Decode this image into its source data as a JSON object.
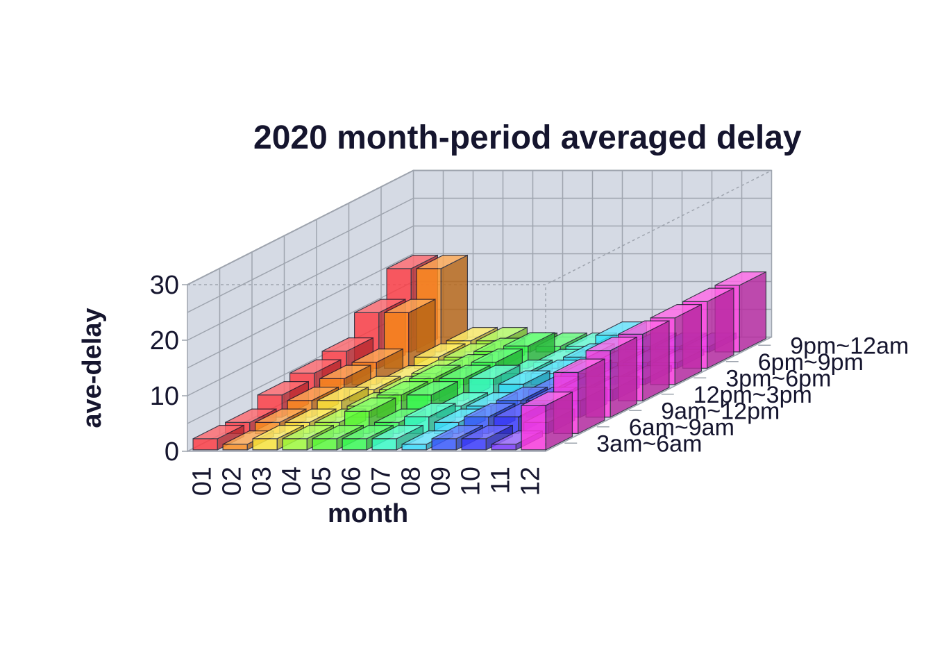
{
  "chart_data": {
    "type": "bar3d",
    "title": "2020 month-period averaged delay",
    "xlabel": "month",
    "ylabel": "ave-delay",
    "x": [
      "01",
      "02",
      "03",
      "04",
      "05",
      "06",
      "07",
      "08",
      "09",
      "10",
      "11",
      "12"
    ],
    "depth": [
      "3am~6am",
      "6am~9am",
      "9am~12pm",
      "12pm~3pm",
      "3pm~6pm",
      "6pm~9pm",
      "9pm~12am"
    ],
    "yticks": [
      0,
      10,
      20,
      30
    ],
    "ylim": [
      0,
      30
    ],
    "values": [
      [
        2,
        2,
        4,
        5,
        6,
        10,
        15
      ],
      [
        1,
        2,
        3,
        4,
        4,
        10,
        15
      ],
      [
        2,
        2,
        3,
        2,
        1,
        2,
        2
      ],
      [
        2,
        2,
        2,
        2,
        2,
        2,
        2
      ],
      [
        2,
        4,
        4,
        4,
        3,
        3,
        1
      ],
      [
        2,
        2,
        4,
        4,
        4,
        4,
        1
      ],
      [
        2,
        3,
        2,
        4,
        2,
        1,
        1
      ],
      [
        1,
        2,
        2,
        3,
        2,
        2,
        3
      ],
      [
        2,
        3,
        3,
        2,
        2,
        1,
        1
      ],
      [
        2,
        3,
        3,
        2,
        1,
        1,
        1
      ],
      [
        1,
        2,
        3,
        2,
        1,
        1,
        1
      ],
      [
        8,
        11,
        12,
        12,
        12,
        12,
        12
      ]
    ],
    "colors": [
      "#ff3b42",
      "#ff8f1f",
      "#ffe83a",
      "#a2ff3a",
      "#5cff3a",
      "#3aff55",
      "#3affc8",
      "#3ae0ff",
      "#3a5bff",
      "#3a3aff",
      "#7b3aff",
      "#ff3ae0"
    ],
    "grid": true
  }
}
